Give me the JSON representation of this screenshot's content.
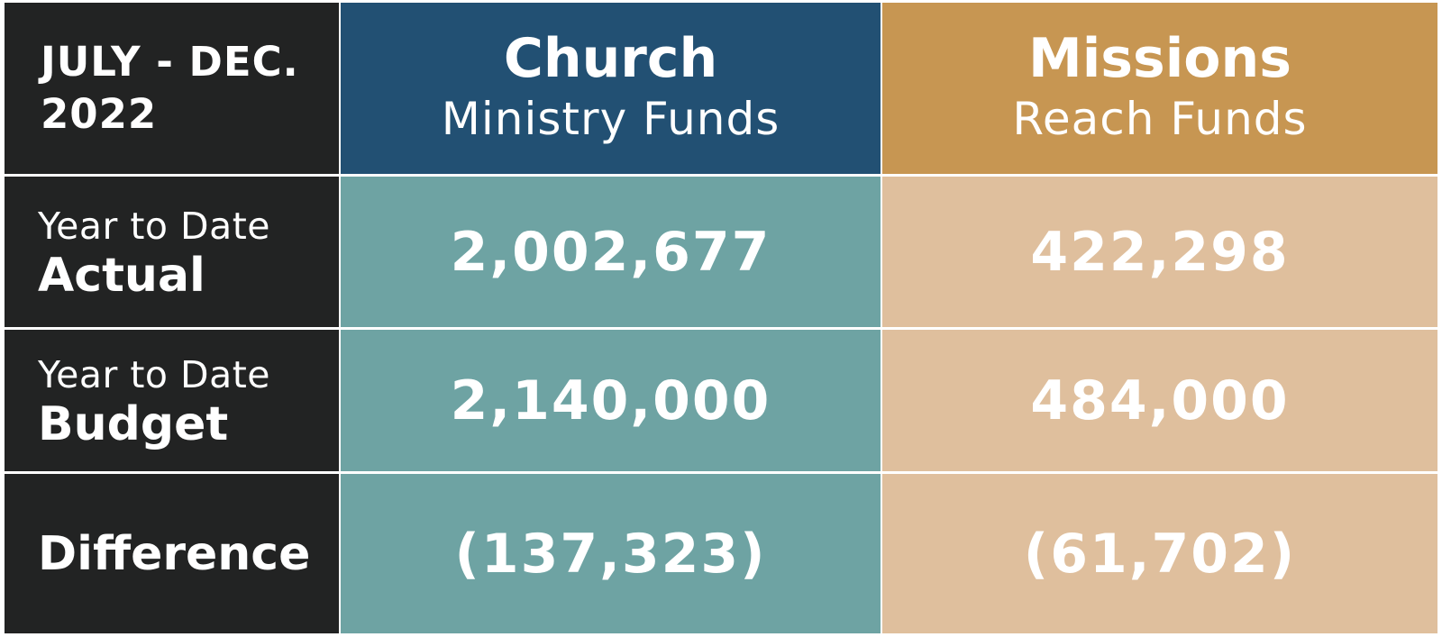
{
  "period": {
    "line1": "JULY - DEC.",
    "line2": "2022"
  },
  "columns": [
    {
      "title": "Church",
      "subtitle": "Ministry Funds",
      "color": "#225073"
    },
    {
      "title": "Missions",
      "subtitle": "Reach Funds",
      "color": "#c79652"
    }
  ],
  "rows": [
    {
      "label_light": "Year to Date",
      "label_bold": "Actual",
      "values": [
        "2,002,677",
        "422,298"
      ]
    },
    {
      "label_light": "Year to Date",
      "label_bold": "Budget",
      "values": [
        "2,140,000",
        "484,000"
      ]
    },
    {
      "label_light": "",
      "label_bold": "Difference",
      "values": [
        "(137,323)",
        "(61,702)"
      ]
    }
  ],
  "colors": {
    "label_background": "#222323",
    "church_body": "#6ea3a3",
    "missions_body": "#dfbf9d",
    "text": "#ffffff"
  }
}
